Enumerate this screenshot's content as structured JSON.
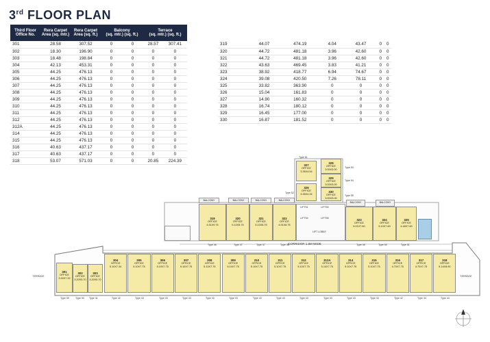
{
  "title": {
    "main": "3",
    "sup": "rd",
    "rest": " FLOOR PLAN"
  },
  "table_headers": {
    "office_no": "Third Floor Office No.",
    "rera_mtr": "Rera Carpet Area (sq. mtr.)",
    "rera_ft": "Rera Carpet Area (sq. ft.)",
    "balcony": "Balcony",
    "balcony_sub": "(sq. mtr.)  (sq. ft.)",
    "terrace": "Terrace",
    "terrace_sub": "(sq. mtr.)  (sq. ft.)"
  },
  "rows_left": [
    [
      "301",
      "28.58",
      "307.52",
      "0",
      "0",
      "28.57",
      "307.41"
    ],
    [
      "302",
      "18.30",
      "196.90",
      "0",
      "0",
      "0",
      "0"
    ],
    [
      "303",
      "18.48",
      "198.84",
      "0",
      "0",
      "0",
      "0"
    ],
    [
      "304",
      "42.13",
      "453.31",
      "0",
      "0",
      "0",
      "0"
    ],
    [
      "305",
      "44.25",
      "476.13",
      "0",
      "0",
      "0",
      "0"
    ],
    [
      "306",
      "44.25",
      "476.13",
      "0",
      "0",
      "0",
      "0"
    ],
    [
      "307",
      "44.25",
      "476.13",
      "0",
      "0",
      "0",
      "0"
    ],
    [
      "308",
      "44.25",
      "476.13",
      "0",
      "0",
      "0",
      "0"
    ],
    [
      "309",
      "44.25",
      "476.13",
      "0",
      "0",
      "0",
      "0"
    ],
    [
      "310",
      "44.25",
      "476.13",
      "0",
      "0",
      "0",
      "0"
    ],
    [
      "311",
      "44.25",
      "476.13",
      "0",
      "0",
      "0",
      "0"
    ],
    [
      "312",
      "44.25",
      "476.13",
      "0",
      "0",
      "0",
      "0"
    ],
    [
      "312A",
      "44.25",
      "476.13",
      "0",
      "0",
      "0",
      "0"
    ],
    [
      "314",
      "44.25",
      "476.13",
      "0",
      "0",
      "0",
      "0"
    ],
    [
      "315",
      "44.25",
      "476.13",
      "0",
      "0",
      "0",
      "0"
    ],
    [
      "316",
      "40.63",
      "437.17",
      "0",
      "0",
      "0",
      "0"
    ],
    [
      "317",
      "40.63",
      "437.17",
      "0",
      "0",
      "0",
      "0"
    ],
    [
      "318",
      "53.07",
      "571.03",
      "0",
      "0",
      "20.85",
      "224.39"
    ]
  ],
  "rows_right": [
    [
      "319",
      "44.07",
      "474.19",
      "4.04",
      "43.47",
      "0",
      "0"
    ],
    [
      "320",
      "44.72",
      "481.18",
      "3.96",
      "42.60",
      "0",
      "0"
    ],
    [
      "321",
      "44.72",
      "481.18",
      "3.96",
      "42.60",
      "0",
      "0"
    ],
    [
      "322",
      "43.63",
      "469.45",
      "3.83",
      "41.21",
      "0",
      "0"
    ],
    [
      "323",
      "38.92",
      "418.77",
      "6.94",
      "74.67",
      "0",
      "0"
    ],
    [
      "324",
      "39.08",
      "420.50",
      "7.26",
      "78.11",
      "0",
      "0"
    ],
    [
      "325",
      "33.82",
      "363.90",
      "0",
      "0",
      "0",
      "0"
    ],
    [
      "326",
      "15.04",
      "161.83",
      "0",
      "0",
      "0",
      "0"
    ],
    [
      "327",
      "14.90",
      "160.32",
      "0",
      "0",
      "0",
      "0"
    ],
    [
      "328",
      "16.74",
      "180.12",
      "0",
      "0",
      "0",
      "0"
    ],
    [
      "329",
      "16.45",
      "177.00",
      "0",
      "0",
      "0",
      "0"
    ],
    [
      "330",
      "16.87",
      "181.52",
      "0",
      "0",
      "0",
      "0"
    ]
  ],
  "plan": {
    "office_word": "OFFICE",
    "corridor": "CORRIDOR 1.8M WIDE",
    "lift": "LIFT LOBBY",
    "terrace": "TERRACE",
    "top_offices": [
      {
        "no": "319",
        "dim": "4.51X9.75"
      },
      {
        "no": "320",
        "dim": "5.10X8.75"
      },
      {
        "no": "321",
        "dim": "5.10X8.75"
      },
      {
        "no": "322",
        "dim": "4.51X8.75"
      },
      {
        "no": "323",
        "dim": "5.01X7.60"
      },
      {
        "no": "324",
        "dim": "5.10X7.60"
      },
      {
        "no": "325",
        "dim": "4.48X7.60"
      }
    ],
    "bottom_offices": [
      {
        "no": "304",
        "dim": "5.10X7.34"
      },
      {
        "no": "305",
        "dim": "5.10X7.75"
      },
      {
        "no": "306",
        "dim": "5.10X7.75"
      },
      {
        "no": "307",
        "dim": "5.10X7.75"
      },
      {
        "no": "308",
        "dim": "5.10X7.75"
      },
      {
        "no": "309",
        "dim": "5.10X7.75"
      },
      {
        "no": "310",
        "dim": "5.10X7.75"
      },
      {
        "no": "311",
        "dim": "5.10X7.75"
      },
      {
        "no": "312",
        "dim": "5.10X7.75"
      },
      {
        "no": "312A",
        "dim": "5.10X7.75"
      },
      {
        "no": "314",
        "dim": "5.10X7.75"
      },
      {
        "no": "315",
        "dim": "5.10X7.75"
      },
      {
        "no": "316",
        "dim": "4.70X7.75"
      },
      {
        "no": "317",
        "dim": "4.70X7.75"
      },
      {
        "no": "318",
        "dim": "5.14X8.90"
      }
    ],
    "left_offices": [
      {
        "no": "301",
        "dim": "3.30X7.32"
      },
      {
        "no": "302",
        "dim": "3.20X5.70"
      },
      {
        "no": "303",
        "dim": "3.20X5.70"
      }
    ],
    "upper_offices": [
      {
        "no": "327",
        "dim": "3.35X4.54"
      },
      {
        "no": "328",
        "dim": "3.00X3.00"
      },
      {
        "no": "329",
        "dim": "3.00X3.00"
      },
      {
        "no": "326",
        "dim": "3.35X4.34"
      },
      {
        "no": "330",
        "dim": "3.00X3.00"
      }
    ],
    "types": [
      "Type 61",
      "Type 53",
      "Type 54",
      "Type 52",
      "Type 55",
      "Type 46",
      "Type 47",
      "Type 47",
      "Type 48",
      "Type 49",
      "Type 50",
      "Type 51",
      "Type 39",
      "Type 40",
      "Type 41",
      "Type 42",
      "Type 43",
      "Type 43",
      "Type 43",
      "Type 43",
      "Type 43",
      "Type 43",
      "Type 43",
      "Type 43",
      "Type 43",
      "Type 43",
      "Type 43",
      "Type 42",
      "Type 44",
      "Type 44",
      "Type 45"
    ],
    "balcony_labels": [
      "BALCONY",
      "BALCONY",
      "BALCONY",
      "BALCONY",
      "BALCONY",
      "BALCONY"
    ],
    "lift_labels": [
      "LIFT51",
      "LIFT50",
      "LIFT54",
      "LIFT55"
    ],
    "corridor_dim": "1.8M WIDE"
  }
}
